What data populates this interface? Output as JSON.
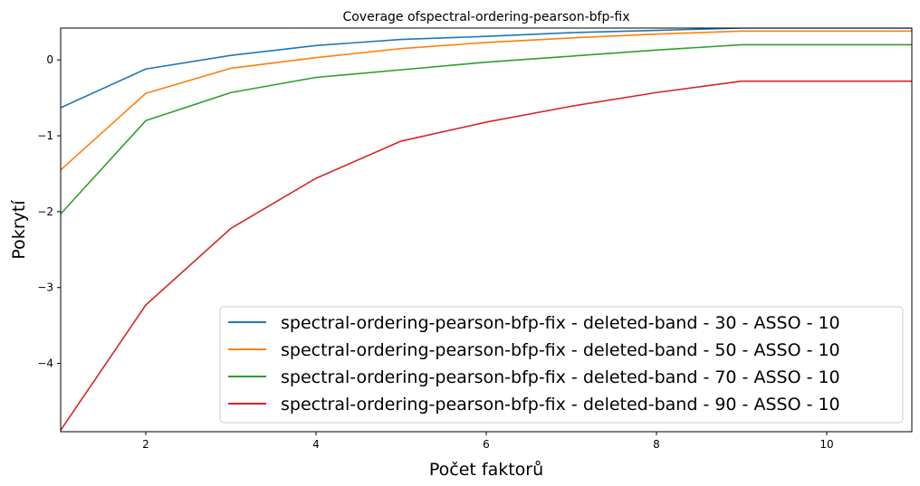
{
  "chart_data": {
    "type": "line",
    "title": "Coverage ofspectral-ordering-pearson-bfp-fix",
    "xlabel": "Počet faktorů",
    "ylabel": "Pokrytí",
    "xlim": [
      1,
      11
    ],
    "ylim": [
      -4.9,
      0.42
    ],
    "xticks": [
      2,
      4,
      6,
      8,
      10
    ],
    "yticks": [
      0,
      -1,
      -2,
      -3,
      -4
    ],
    "xtick_labels": [
      "2",
      "4",
      "6",
      "8",
      "10"
    ],
    "ytick_labels": [
      "0",
      "−1",
      "−2",
      "−3",
      "−4"
    ],
    "grid": false,
    "legend_position": "bottom-right",
    "x": [
      1,
      2,
      3,
      4,
      5,
      6,
      7,
      8,
      9,
      10,
      11
    ],
    "series": [
      {
        "name": "spectral-ordering-pearson-bfp-fix - deleted-band - 30 - ASSO - 10",
        "color": "#1f77b4",
        "values": [
          -0.63,
          -0.12,
          0.06,
          0.19,
          0.27,
          0.31,
          0.36,
          0.39,
          0.42,
          0.42,
          0.42
        ]
      },
      {
        "name": "spectral-ordering-pearson-bfp-fix - deleted-band - 50 - ASSO - 10",
        "color": "#ff7f0e",
        "values": [
          -1.45,
          -0.44,
          -0.11,
          0.03,
          0.15,
          0.23,
          0.29,
          0.34,
          0.38,
          0.38,
          0.38
        ]
      },
      {
        "name": "spectral-ordering-pearson-bfp-fix - deleted-band - 70 - ASSO - 10",
        "color": "#2ca02c",
        "values": [
          -2.03,
          -0.8,
          -0.43,
          -0.23,
          -0.13,
          -0.03,
          0.05,
          0.13,
          0.2,
          0.2,
          0.2
        ]
      },
      {
        "name": "spectral-ordering-pearson-bfp-fix - deleted-band - 90 - ASSO - 10",
        "color": "#d62728",
        "values": [
          -4.88,
          -3.23,
          -2.22,
          -1.56,
          -1.07,
          -0.82,
          -0.61,
          -0.43,
          -0.28,
          -0.28,
          -0.28
        ]
      }
    ]
  }
}
